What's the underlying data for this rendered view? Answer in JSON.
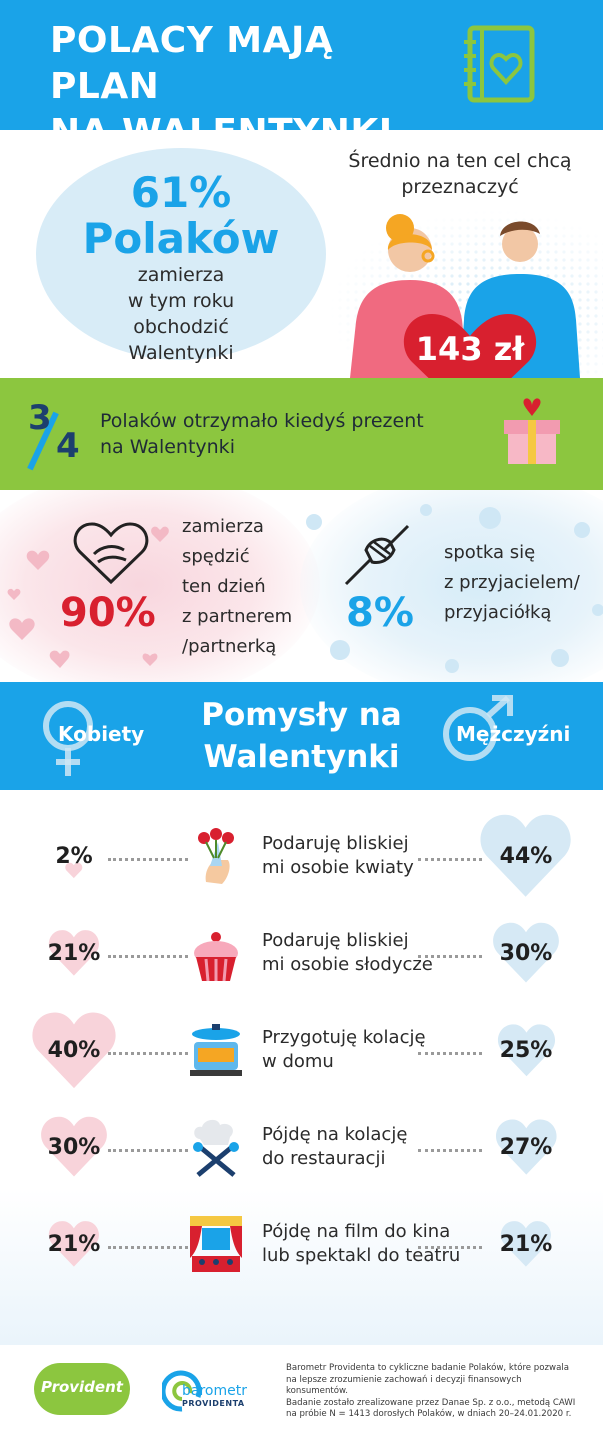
{
  "header": {
    "title_line1": "POLACY MAJĄ PLAN",
    "title_line2": "NA WALENTYNKI",
    "icon": "heart-notebook-icon",
    "bg_color": "#1aa3e8",
    "accent_color": "#8cc63f"
  },
  "plans": {
    "percent": "61%",
    "subject": "Polaków",
    "desc_line1": "zamierza",
    "desc_line2": "w tym roku obchodzić",
    "desc_line3": "Walentynki",
    "avg_line1": "Średnio na ten cel chcą",
    "avg_line2": "przeznaczyć",
    "amount": "143 zł",
    "heart_color": "#d8202f"
  },
  "gift": {
    "numerator": "3",
    "denominator": "4",
    "line1": "Polaków otrzymało kiedyś prezent",
    "line2": "na Walentynki",
    "icon": "gift-box-icon",
    "bg_color": "#8cc63f"
  },
  "partners": {
    "partner_pct": "90%",
    "partner_lines": [
      "zamierza",
      "spędzić",
      "ten dzień",
      "z partnerem",
      "/partnerką"
    ],
    "friend_pct": "8%",
    "friend_lines": [
      "spotka się",
      "z przyjacielem/",
      "przyjaciółką"
    ]
  },
  "ideas_header": {
    "title_line1": "Pomysły na",
    "title_line2": "Walentynki",
    "women": "Kobiety",
    "men": "Mężczyźni"
  },
  "chart_data": {
    "type": "table",
    "title": "Pomysły na Walentynki",
    "columns": [
      "Kobiety",
      "Mężczyźni"
    ],
    "rows": [
      {
        "label": "Podaruję bliskiej mi osobie kwiaty",
        "label_line1": "Podaruję bliskiej",
        "label_line2": "mi osobie kwiaty",
        "women": 2,
        "men": 44,
        "women_text": "2%",
        "men_text": "44%",
        "icon": "flowers-icon"
      },
      {
        "label": "Podaruję bliskiej mi osobie słodycze",
        "label_line1": "Podaruję bliskiej",
        "label_line2": "mi osobie słodycze",
        "women": 21,
        "men": 30,
        "women_text": "21%",
        "men_text": "30%",
        "icon": "cupcake-icon"
      },
      {
        "label": "Przygotuję kolację w domu",
        "label_line1": "Przygotuję kolację",
        "label_line2": "w domu",
        "women": 40,
        "men": 25,
        "women_text": "40%",
        "men_text": "25%",
        "icon": "cooking-pot-icon"
      },
      {
        "label": "Pójdę na kolację do restauracji",
        "label_line1": "Pójdę na kolację",
        "label_line2": "do restauracji",
        "women": 30,
        "men": 27,
        "women_text": "30%",
        "men_text": "27%",
        "icon": "chef-hat-cutlery-icon"
      },
      {
        "label": "Pójdę na film do kina lub spektakl do teatru",
        "label_line1": "Pójdę na film do kina",
        "label_line2": "lub spektakl do teatru",
        "women": 21,
        "men": 21,
        "women_text": "21%",
        "men_text": "21%",
        "icon": "theatre-stage-icon"
      }
    ],
    "women_heart_color": "#f8d3da",
    "men_heart_color": "#d6e9f5"
  },
  "footer": {
    "provident": "Provident",
    "barometr_line1": "barometr",
    "barometr_line2": "PROVIDENTA",
    "note_lines": [
      "Barometr Providenta to cykliczne badanie Polaków, które pozwala",
      "na lepsze zrozumienie zachowań i decyzji finansowych konsumentów.",
      "Badanie zostało zrealizowane przez Danae Sp. z o.o., metodą CAWI",
      "na próbie N = 1413 dorosłych Polaków, w dniach 20–24.01.2020 r."
    ]
  }
}
